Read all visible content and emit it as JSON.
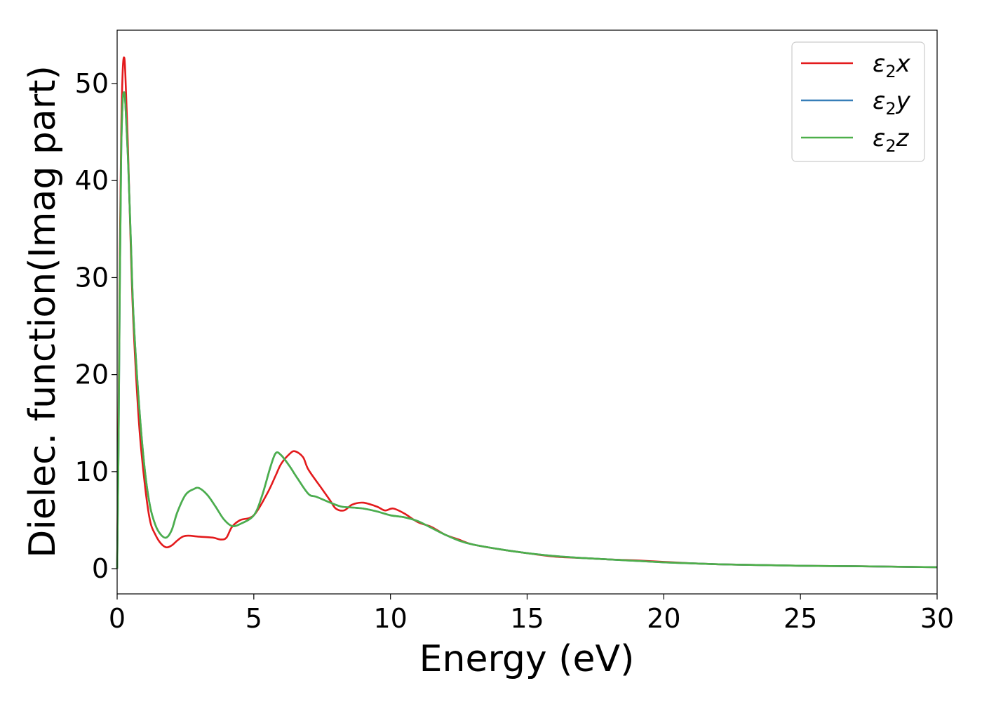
{
  "chart_data": {
    "type": "line",
    "xlabel": "Energy (eV)",
    "ylabel": "Dielec. function(Imag part)",
    "xlim": [
      0,
      30
    ],
    "ylim": [
      -2.6,
      55.5
    ],
    "xticks": [
      0,
      5,
      10,
      15,
      20,
      25,
      30
    ],
    "yticks": [
      0,
      10,
      20,
      30,
      40,
      50
    ],
    "grid": false,
    "legend_position": "top-right",
    "series": [
      {
        "name": "ε₂x",
        "legend_main": "ε",
        "legend_sub": "2",
        "legend_axis": "x",
        "color": "#e31a1c",
        "x": [
          0,
          0.05,
          0.1,
          0.15,
          0.2,
          0.25,
          0.3,
          0.4,
          0.5,
          0.6,
          0.8,
          1.0,
          1.2,
          1.4,
          1.6,
          1.8,
          2.0,
          2.2,
          2.4,
          2.6,
          3.0,
          3.5,
          3.8,
          4.0,
          4.2,
          4.5,
          5.0,
          5.5,
          5.8,
          6.0,
          6.3,
          6.5,
          6.8,
          7.0,
          7.5,
          7.8,
          8.0,
          8.3,
          8.6,
          9.0,
          9.5,
          9.8,
          10.1,
          10.5,
          11.0,
          11.5,
          12.0,
          12.5,
          13.0,
          14.0,
          15.0,
          16.0,
          17.0,
          18.0,
          19.0,
          20.0,
          21.0,
          22.0,
          23.0,
          25.0,
          27.0,
          30.0
        ],
        "y": [
          0,
          15,
          33,
          45,
          51,
          52.7,
          51,
          43,
          33,
          25,
          15,
          9,
          5,
          3.5,
          2.6,
          2.2,
          2.4,
          2.9,
          3.3,
          3.4,
          3.3,
          3.2,
          3.0,
          3.2,
          4.3,
          5.0,
          5.5,
          7.8,
          9.6,
          10.8,
          11.8,
          12.1,
          11.5,
          10.2,
          8.2,
          7.0,
          6.2,
          6.0,
          6.6,
          6.8,
          6.4,
          6.0,
          6.2,
          5.7,
          4.8,
          4.3,
          3.5,
          3.0,
          2.5,
          2.0,
          1.6,
          1.25,
          1.1,
          0.95,
          0.85,
          0.7,
          0.55,
          0.45,
          0.4,
          0.3,
          0.25,
          0.15
        ]
      },
      {
        "name": "ε₂y",
        "legend_main": "ε",
        "legend_sub": "2",
        "legend_axis": "y",
        "color": "#377eb8",
        "x": [
          0,
          0.05,
          0.1,
          0.15,
          0.2,
          0.25,
          0.3,
          0.4,
          0.5,
          0.6,
          0.8,
          1.0,
          1.2,
          1.4,
          1.6,
          1.8,
          2.0,
          2.2,
          2.5,
          2.8,
          3.0,
          3.3,
          3.6,
          3.9,
          4.2,
          4.5,
          5.0,
          5.3,
          5.6,
          5.8,
          6.0,
          6.3,
          6.6,
          7.0,
          7.3,
          7.8,
          8.2,
          8.6,
          9.0,
          9.5,
          10.0,
          10.5,
          11.0,
          11.5,
          12.0,
          12.5,
          13.0,
          14.0,
          15.0,
          16.0,
          17.0,
          18.0,
          19.0,
          20.0,
          21.0,
          22.0,
          23.0,
          25.0,
          27.0,
          30.0
        ],
        "y": [
          0,
          12,
          30,
          43,
          48,
          49.1,
          48,
          42,
          34,
          26,
          17,
          10.5,
          6.5,
          4.5,
          3.5,
          3.2,
          4.0,
          5.8,
          7.6,
          8.2,
          8.3,
          7.6,
          6.4,
          5.1,
          4.4,
          4.6,
          5.5,
          7.5,
          10.4,
          11.9,
          11.7,
          10.6,
          9.3,
          7.7,
          7.4,
          6.8,
          6.4,
          6.3,
          6.2,
          5.9,
          5.5,
          5.3,
          4.9,
          4.2,
          3.5,
          2.9,
          2.5,
          2.0,
          1.6,
          1.3,
          1.1,
          0.95,
          0.8,
          0.65,
          0.55,
          0.45,
          0.4,
          0.3,
          0.25,
          0.15
        ]
      },
      {
        "name": "ε₂z",
        "legend_main": "ε",
        "legend_sub": "2",
        "legend_axis": "z",
        "color": "#4daf4a",
        "x": [
          0,
          0.05,
          0.1,
          0.15,
          0.2,
          0.25,
          0.3,
          0.4,
          0.5,
          0.6,
          0.8,
          1.0,
          1.2,
          1.4,
          1.6,
          1.8,
          2.0,
          2.2,
          2.5,
          2.8,
          3.0,
          3.3,
          3.6,
          3.9,
          4.2,
          4.5,
          5.0,
          5.3,
          5.6,
          5.8,
          6.0,
          6.3,
          6.6,
          7.0,
          7.3,
          7.8,
          8.2,
          8.6,
          9.0,
          9.5,
          10.0,
          10.5,
          11.0,
          11.5,
          12.0,
          12.5,
          13.0,
          14.0,
          15.0,
          16.0,
          17.0,
          18.0,
          19.0,
          20.0,
          21.0,
          22.0,
          23.0,
          25.0,
          27.0,
          30.0
        ],
        "y": [
          0,
          12,
          30,
          43,
          48,
          49.1,
          48,
          42,
          34,
          26,
          17,
          10.5,
          6.5,
          4.5,
          3.5,
          3.2,
          4.0,
          5.8,
          7.6,
          8.2,
          8.3,
          7.6,
          6.4,
          5.1,
          4.4,
          4.6,
          5.5,
          7.5,
          10.4,
          11.9,
          11.7,
          10.6,
          9.3,
          7.7,
          7.4,
          6.8,
          6.4,
          6.3,
          6.2,
          5.9,
          5.5,
          5.3,
          4.9,
          4.2,
          3.5,
          2.9,
          2.5,
          2.0,
          1.6,
          1.3,
          1.1,
          0.95,
          0.8,
          0.65,
          0.55,
          0.45,
          0.4,
          0.3,
          0.25,
          0.15
        ]
      }
    ]
  }
}
